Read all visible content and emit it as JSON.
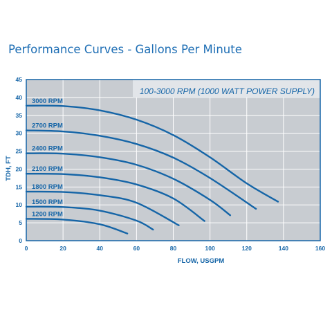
{
  "page": {
    "title": "Performance Curves - Gallons Per Minute"
  },
  "chart_data": {
    "type": "line",
    "annotation": "100-3000 RPM (1000 WATT POWER SUPPLY)",
    "xlabel": "FLOW, USGPM",
    "ylabel": "TDH, FT",
    "xlim": [
      0,
      160
    ],
    "ylim": [
      0,
      45
    ],
    "x_ticks": [
      "0",
      "20",
      "40",
      "60",
      "80",
      "100",
      "120",
      "140",
      "160"
    ],
    "y_ticks": [
      "0",
      "5",
      "10",
      "15",
      "20",
      "25",
      "30",
      "35",
      "40",
      "45"
    ],
    "grid": true,
    "colors": {
      "line": "#1565a7",
      "plot_bg": "#c8ccd1",
      "frame": "#1565a7",
      "text": "#1565a7",
      "annotation_bg": "#e2e5e9"
    },
    "series": [
      {
        "name": "3000 RPM",
        "x": [
          0,
          20,
          40,
          60,
          80,
          100,
          120,
          137
        ],
        "y": [
          37.7,
          37.6,
          36.4,
          33.8,
          29.5,
          23.3,
          16.0,
          10.9
        ]
      },
      {
        "name": "2700 RPM",
        "x": [
          0,
          20,
          40,
          60,
          80,
          100,
          125
        ],
        "y": [
          30.8,
          30.5,
          29.3,
          27.0,
          23.2,
          17.5,
          8.9
        ]
      },
      {
        "name": "2400 RPM",
        "x": [
          0,
          20,
          40,
          60,
          80,
          100,
          111
        ],
        "y": [
          24.4,
          24.3,
          23.3,
          21.2,
          17.3,
          11.4,
          7.1
        ]
      },
      {
        "name": "2100 RPM",
        "x": [
          0,
          20,
          40,
          60,
          80,
          97
        ],
        "y": [
          18.7,
          18.6,
          17.7,
          15.7,
          11.8,
          5.5
        ]
      },
      {
        "name": "1800 RPM",
        "x": [
          0,
          20,
          40,
          60,
          83
        ],
        "y": [
          13.7,
          13.6,
          12.7,
          10.6,
          4.3
        ]
      },
      {
        "name": "1500 RPM",
        "x": [
          0,
          20,
          40,
          60,
          69
        ],
        "y": [
          9.5,
          9.4,
          8.4,
          5.6,
          3.1
        ]
      },
      {
        "name": "1200 RPM",
        "x": [
          0,
          20,
          40,
          55
        ],
        "y": [
          6.1,
          5.9,
          4.6,
          2.0
        ]
      }
    ]
  }
}
